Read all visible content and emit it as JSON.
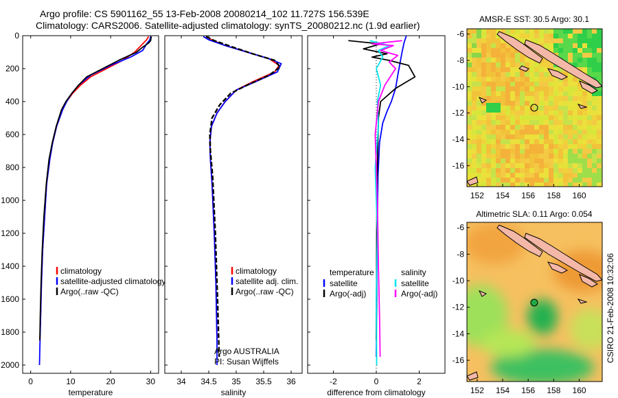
{
  "header": {
    "line1": "Argo profile: CS 5901162_55 13-Feb-2008 20080214_102 11.727S 156.539E",
    "line2": "Climatology: CARS2006. Satellite-adjusted climatology: synTS_20080212.nc (1.9d earlier)"
  },
  "credit": "CSIRO 21-Feb-2008 10:32:06",
  "colors": {
    "climatology": "#ff0000",
    "satellite": "#0000ff",
    "argo": "#000000",
    "satellite_salinity": "#00e5ee",
    "argo_salinity": "#ff00ff"
  },
  "chart_data": [
    {
      "type": "line",
      "id": "temperature",
      "xlabel": "temperature",
      "ylabel": "",
      "xlim": [
        -2,
        32
      ],
      "ylim": [
        2050,
        0
      ],
      "xticks": [
        "0",
        "10",
        "20",
        "30"
      ],
      "xtick_values": [
        0,
        10,
        20,
        30
      ],
      "yticks": [
        "0",
        "200",
        "400",
        "600",
        "800",
        "1000",
        "1200",
        "1400",
        "1600",
        "1800",
        "2000"
      ],
      "ytick_values": [
        0,
        200,
        400,
        600,
        800,
        1000,
        1200,
        1400,
        1600,
        1800,
        2000
      ],
      "legend": {
        "placement": "lower-right",
        "entries": [
          {
            "name": "climatology",
            "color": "#ff0000"
          },
          {
            "name": "satellite-adjusted climatology",
            "color": "#0000ff"
          },
          {
            "name": "Argo(..raw -QC)",
            "color": "#000000"
          }
        ]
      },
      "series": [
        {
          "color": "#ff0000",
          "dash": false,
          "width": 1.8,
          "x": [
            29.5,
            29.0,
            28.0,
            26.0,
            23.0,
            19.0,
            15.0,
            12.5,
            10.5,
            9.0,
            8.0,
            6.5,
            5.5,
            4.8,
            4.0,
            3.5,
            3.0,
            2.7,
            2.5,
            2.3
          ],
          "y": [
            5,
            25,
            50,
            100,
            150,
            200,
            250,
            300,
            350,
            400,
            450,
            550,
            650,
            750,
            900,
            1100,
            1300,
            1500,
            1700,
            1850
          ]
        },
        {
          "color": "#0000ff",
          "dash": false,
          "width": 1.8,
          "x": [
            30.0,
            29.8,
            29.0,
            28.0,
            25.0,
            20.0,
            15.0,
            12.0,
            10.3,
            9.0,
            8.0,
            6.5,
            5.5,
            4.8,
            4.0,
            3.5,
            3.0,
            2.7,
            2.5,
            2.3,
            2.2
          ],
          "y": [
            5,
            25,
            50,
            90,
            130,
            180,
            240,
            300,
            350,
            400,
            450,
            550,
            650,
            750,
            900,
            1100,
            1300,
            1500,
            1700,
            1900,
            2000
          ]
        },
        {
          "color": "#000000",
          "dash": false,
          "width": 1.8,
          "x": [
            30.2,
            30.1,
            30.0,
            29.5,
            28.0,
            26.5,
            22.0,
            18.0,
            14.0,
            12.0,
            10.3,
            8.8,
            7.7,
            6.4,
            5.4,
            4.6,
            3.9,
            3.3,
            2.9,
            2.6,
            2.4,
            2.3
          ],
          "y": [
            5,
            15,
            30,
            45,
            70,
            100,
            150,
            200,
            250,
            300,
            350,
            400,
            450,
            550,
            650,
            750,
            900,
            1100,
            1300,
            1500,
            1700,
            1850
          ]
        }
      ]
    },
    {
      "type": "line",
      "id": "salinity",
      "xlabel": "salinity",
      "xlim": [
        33.7,
        36.2
      ],
      "ylim": [
        2050,
        0
      ],
      "xticks": [
        "34",
        "34.5",
        "35",
        "35.5",
        "36"
      ],
      "xtick_values": [
        34,
        34.5,
        35,
        35.5,
        36
      ],
      "legend": {
        "placement": "lower-right",
        "entries": [
          {
            "name": "climatology",
            "color": "#ff0000"
          },
          {
            "name": "satellite adj. clim.",
            "color": "#0000ff"
          },
          {
            "name": "Argo(..raw -QC)",
            "color": "#000000"
          }
        ]
      },
      "annotation": [
        "Argo AUSTRALIA",
        "PI: Susan Wijffels"
      ],
      "series": [
        {
          "color": "#ff0000",
          "dash": false,
          "width": 1.8,
          "x": [
            34.45,
            34.55,
            34.8,
            35.2,
            35.6,
            35.78,
            35.7,
            35.3,
            35.0,
            34.8,
            34.65,
            34.55,
            34.52,
            34.53,
            34.56,
            34.6,
            34.63,
            34.65
          ],
          "y": [
            5,
            25,
            60,
            100,
            140,
            180,
            220,
            280,
            330,
            400,
            470,
            550,
            650,
            750,
            900,
            1200,
            1500,
            1850
          ]
        },
        {
          "color": "#0000ff",
          "dash": false,
          "width": 1.8,
          "x": [
            34.4,
            34.5,
            34.8,
            35.2,
            35.6,
            35.82,
            35.75,
            35.35,
            35.0,
            34.8,
            34.65,
            34.55,
            34.52,
            34.53,
            34.56,
            34.6,
            34.63,
            34.65,
            34.65
          ],
          "y": [
            5,
            25,
            60,
            100,
            140,
            170,
            220,
            280,
            330,
            400,
            470,
            550,
            650,
            750,
            900,
            1200,
            1500,
            1850,
            2000
          ]
        },
        {
          "color": "#000000",
          "dash": true,
          "width": 2.4,
          "x": [
            34.45,
            34.6,
            34.9,
            35.3,
            35.7,
            35.8,
            35.6,
            35.2,
            34.9,
            34.7,
            34.56,
            34.52,
            34.53,
            34.57,
            34.62,
            34.66,
            34.69
          ],
          "y": [
            5,
            30,
            65,
            110,
            150,
            190,
            240,
            300,
            350,
            420,
            500,
            600,
            700,
            850,
            1200,
            1600,
            1950
          ]
        }
      ]
    },
    {
      "type": "line",
      "id": "difference",
      "xlabel": "difference from climatology",
      "xlim": [
        -3.2,
        3.2
      ],
      "ylim": [
        2050,
        0
      ],
      "xticks": [
        "-2",
        "0",
        "2"
      ],
      "xtick_values": [
        -2,
        0,
        2
      ],
      "legend": {
        "placement": "lower-center",
        "groups": [
          {
            "title": "temperature",
            "entries": [
              {
                "name": "satellite",
                "color": "#0000ff"
              },
              {
                "name": "Argo(-adj)",
                "color": "#000000"
              }
            ]
          },
          {
            "title": "salinity",
            "entries": [
              {
                "name": "satellite",
                "color": "#00e5ee"
              },
              {
                "name": "Argo(-adj)",
                "color": "#ff00ff"
              }
            ]
          }
        ]
      },
      "series": [
        {
          "color": "#0000ff",
          "dash": false,
          "width": 1.8,
          "x": [
            1.4,
            1.3,
            1.2,
            1.1,
            1.0,
            0.9,
            0.7,
            0.5,
            0.3,
            0.15,
            0.08,
            0.04,
            0.02,
            0.0
          ],
          "y": [
            0,
            40,
            100,
            170,
            240,
            320,
            400,
            460,
            530,
            650,
            850,
            1200,
            1600,
            1950
          ]
        },
        {
          "color": "#000000",
          "dash": false,
          "width": 1.8,
          "x": [
            -1.3,
            0.2,
            -0.6,
            0.5,
            -0.2,
            0.6,
            1.5,
            1.8,
            0.9,
            0.2,
            0.1,
            0.05,
            0.02,
            0.0
          ],
          "y": [
            30,
            50,
            80,
            110,
            130,
            150,
            180,
            250,
            320,
            400,
            500,
            800,
            1200,
            1850
          ]
        },
        {
          "color": "#00e5ee",
          "dash": false,
          "width": 1.8,
          "x": [
            -0.3,
            0.6,
            0.1,
            0.3,
            0.0,
            0.2,
            0.05,
            0.1,
            -0.05,
            0.05,
            0.0,
            0.02
          ],
          "y": [
            30,
            60,
            90,
            130,
            200,
            300,
            400,
            550,
            800,
            1200,
            1600,
            2000
          ]
        },
        {
          "color": "#ff00ff",
          "dash": false,
          "width": 1.8,
          "x": [
            1.2,
            -0.2,
            0.8,
            0.2,
            1.0,
            0.6,
            0.9,
            0.4,
            0.1,
            -0.05,
            0.05,
            0.1,
            0.15,
            0.18
          ],
          "y": [
            30,
            50,
            60,
            90,
            120,
            160,
            200,
            300,
            400,
            600,
            1000,
            1400,
            1700,
            1950
          ]
        }
      ]
    },
    {
      "type": "heatmap",
      "id": "sst-map",
      "title": "AMSR-E SST: 30.5 Argo: 30.1",
      "xlim": [
        151.2,
        161.8
      ],
      "ylim": [
        -17.6,
        -5.6
      ],
      "xticks": [
        "152",
        "154",
        "156",
        "158",
        "160"
      ],
      "xtick_values": [
        152,
        154,
        156,
        158,
        160
      ],
      "yticks": [
        "-6",
        "-8",
        "-10",
        "-12",
        "-14",
        "-16"
      ],
      "ytick_values": [
        -6,
        -8,
        -10,
        -12,
        -14,
        -16
      ],
      "marker": {
        "lon": 156.54,
        "lat": -11.73
      }
    },
    {
      "type": "heatmap",
      "id": "sla-map",
      "title": "Altimetric SLA: 0.11 Argo: 0.054",
      "xlim": [
        151.2,
        161.8
      ],
      "ylim": [
        -17.6,
        -5.6
      ],
      "xticks": [
        "152",
        "154",
        "156",
        "158",
        "160"
      ],
      "xtick_values": [
        152,
        154,
        156,
        158,
        160
      ],
      "yticks": [
        "-6",
        "-8",
        "-10",
        "-12",
        "-14",
        "-16"
      ],
      "ytick_values": [
        -6,
        -8,
        -10,
        -12,
        -14,
        -16
      ],
      "marker": {
        "lon": 156.54,
        "lat": -11.73
      }
    }
  ]
}
